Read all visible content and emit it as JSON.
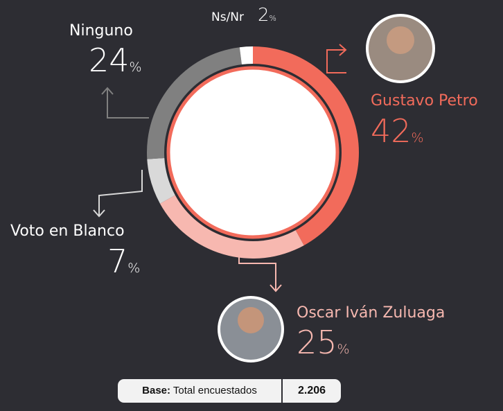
{
  "chart_data": {
    "type": "pie",
    "categories": [
      "Gustavo Petro",
      "Oscar Iván Zuluaga",
      "Voto en Blanco",
      "Ninguno",
      "Ns/Nr"
    ],
    "values": [
      42,
      25,
      7,
      24,
      2
    ],
    "colors": [
      "#f26b5b",
      "#f7b8b0",
      "#d9d9d9",
      "#808080",
      "#ffffff"
    ],
    "unit": "%",
    "footer": {
      "label": "Base:",
      "text": "Total encuestados",
      "value": "2.206"
    }
  }
}
